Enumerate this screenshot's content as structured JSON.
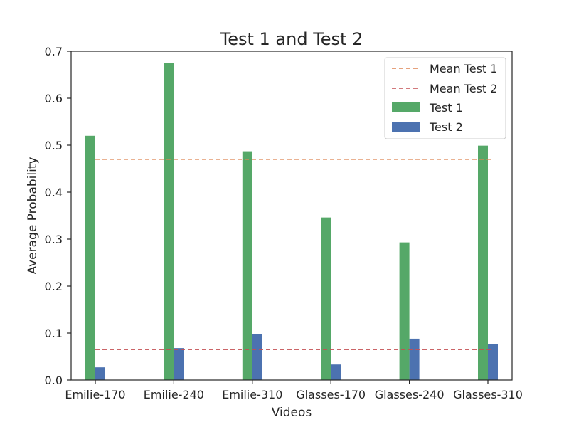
{
  "chart_data": {
    "type": "bar",
    "title": "Test 1 and Test 2",
    "xlabel": "Videos",
    "ylabel": "Average Probability",
    "ylim": [
      0,
      0.7
    ],
    "yticks": [
      "0.0",
      "0.1",
      "0.2",
      "0.3",
      "0.4",
      "0.5",
      "0.6",
      "0.7"
    ],
    "categories": [
      "Emilie-170",
      "Emilie-240",
      "Emilie-310",
      "Glasses-170",
      "Glasses-240",
      "Glasses-310"
    ],
    "series": [
      {
        "name": "Test 1",
        "color": "#55a868",
        "values": [
          0.52,
          0.675,
          0.487,
          0.346,
          0.293,
          0.499
        ]
      },
      {
        "name": "Test 2",
        "color": "#4c72b0",
        "values": [
          0.027,
          0.068,
          0.098,
          0.033,
          0.088,
          0.076
        ]
      }
    ],
    "reference_lines": [
      {
        "name": "Mean Test 1",
        "value": 0.47,
        "color": "#dd8452",
        "style": "dashed"
      },
      {
        "name": "Mean Test 2",
        "value": 0.065,
        "color": "#c44e52",
        "style": "dashed"
      }
    ],
    "legend": {
      "placement": "top-right",
      "entries": [
        "Mean Test 1",
        "Mean Test 2",
        "Test 1",
        "Test 2"
      ]
    },
    "grid": false
  }
}
